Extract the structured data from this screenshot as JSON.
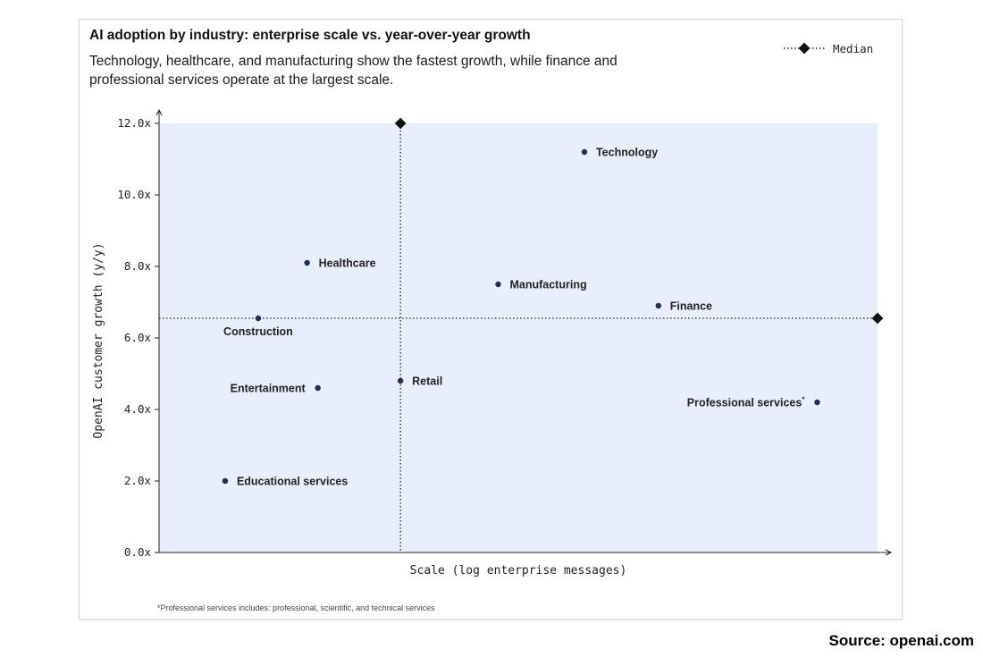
{
  "chart_data": {
    "type": "scatter",
    "title": "AI adoption by industry: enterprise scale vs. year-over-year growth",
    "subtitle": "Technology, healthcare, and manufacturing show the fastest growth, while finance and professional services operate at the largest scale.",
    "xlabel": "Scale (log enterprise messages)",
    "ylabel": "OpenAI customer growth (y/y)",
    "xlim": [
      0,
      100
    ],
    "ylim": [
      0,
      12
    ],
    "y_ticks": [
      {
        "value": 0,
        "label": "0.0x"
      },
      {
        "value": 2,
        "label": "2.0x"
      },
      {
        "value": 4,
        "label": "4.0x"
      },
      {
        "value": 6,
        "label": "6.0x"
      },
      {
        "value": 8,
        "label": "8.0x"
      },
      {
        "value": 10,
        "label": "10.0x"
      },
      {
        "value": 12,
        "label": "12.0x"
      }
    ],
    "legend": {
      "label": "Median",
      "placement": "top-right"
    },
    "median": {
      "x": 33.6,
      "y": 6.55
    },
    "points": [
      {
        "name": "Technology",
        "x": 59.2,
        "y": 11.2,
        "label_side": "right",
        "note": ""
      },
      {
        "name": "Healthcare",
        "x": 20.6,
        "y": 8.1,
        "label_side": "right",
        "note": ""
      },
      {
        "name": "Manufacturing",
        "x": 47.2,
        "y": 7.5,
        "label_side": "right",
        "note": ""
      },
      {
        "name": "Finance",
        "x": 69.5,
        "y": 6.9,
        "label_side": "right",
        "note": ""
      },
      {
        "name": "Construction",
        "x": 13.8,
        "y": 6.55,
        "label_side": "below",
        "note": ""
      },
      {
        "name": "Retail",
        "x": 33.6,
        "y": 4.8,
        "label_side": "right",
        "note": ""
      },
      {
        "name": "Entertainment",
        "x": 22.1,
        "y": 4.6,
        "label_side": "left",
        "note": ""
      },
      {
        "name": "Professional services",
        "x": 91.6,
        "y": 4.2,
        "label_side": "left",
        "note": "*"
      },
      {
        "name": "Educational services",
        "x": 9.2,
        "y": 2.0,
        "label_side": "right",
        "note": ""
      }
    ],
    "colors": {
      "plot_bg": "#e8eefb",
      "point": "#1f2e5c",
      "median_line": "#222222",
      "axis": "#222222"
    }
  },
  "footnote": "*Professional services includes: professional, scientific, and technical services",
  "source": "Source: openai.com"
}
